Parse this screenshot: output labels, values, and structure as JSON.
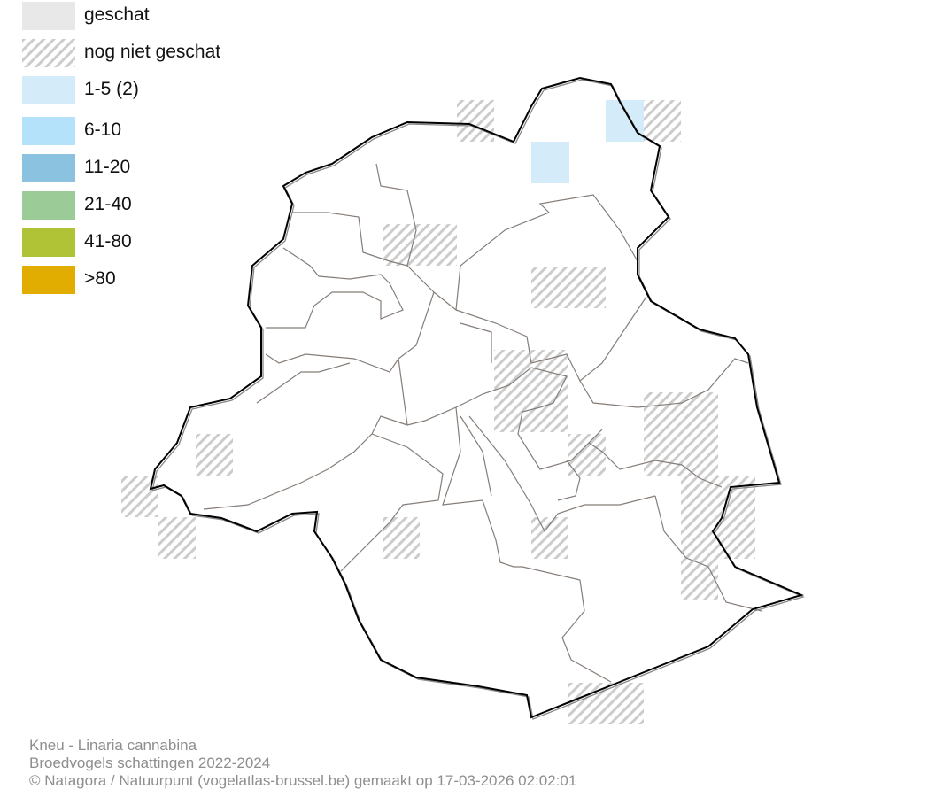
{
  "legend": {
    "items": [
      {
        "label": "geschat",
        "color": "#e8e8e8",
        "pattern": "solid"
      },
      {
        "label": "nog niet geschat",
        "color": "#cccccc",
        "pattern": "hatched"
      },
      {
        "label": "1-5 (2)",
        "color": "#d4ebf9",
        "pattern": "solid"
      },
      {
        "label": "6-10",
        "color": "#b3e2fa",
        "pattern": "solid"
      },
      {
        "label": "11-20",
        "color": "#8ac2df",
        "pattern": "solid"
      },
      {
        "label": "21-40",
        "color": "#9bcb96",
        "pattern": "solid"
      },
      {
        "label": "41-80",
        "color": "#b0c236",
        "pattern": "solid"
      },
      {
        "label": ">80",
        "color": "#e0ad00",
        "pattern": "solid"
      }
    ]
  },
  "map": {
    "outline_color": "#000000",
    "boundary_color": "#857d78",
    "estimated_cells_class": "1-5 (2)"
  },
  "footer": {
    "species": "Kneu - Linaria cannabina",
    "subtitle": "Broedvogels schattingen 2022-2024",
    "credit": "© Natagora / Natuurpunt (vogelatlas-brussel.be) gemaakt op 17-03-2026 02:02:01"
  }
}
